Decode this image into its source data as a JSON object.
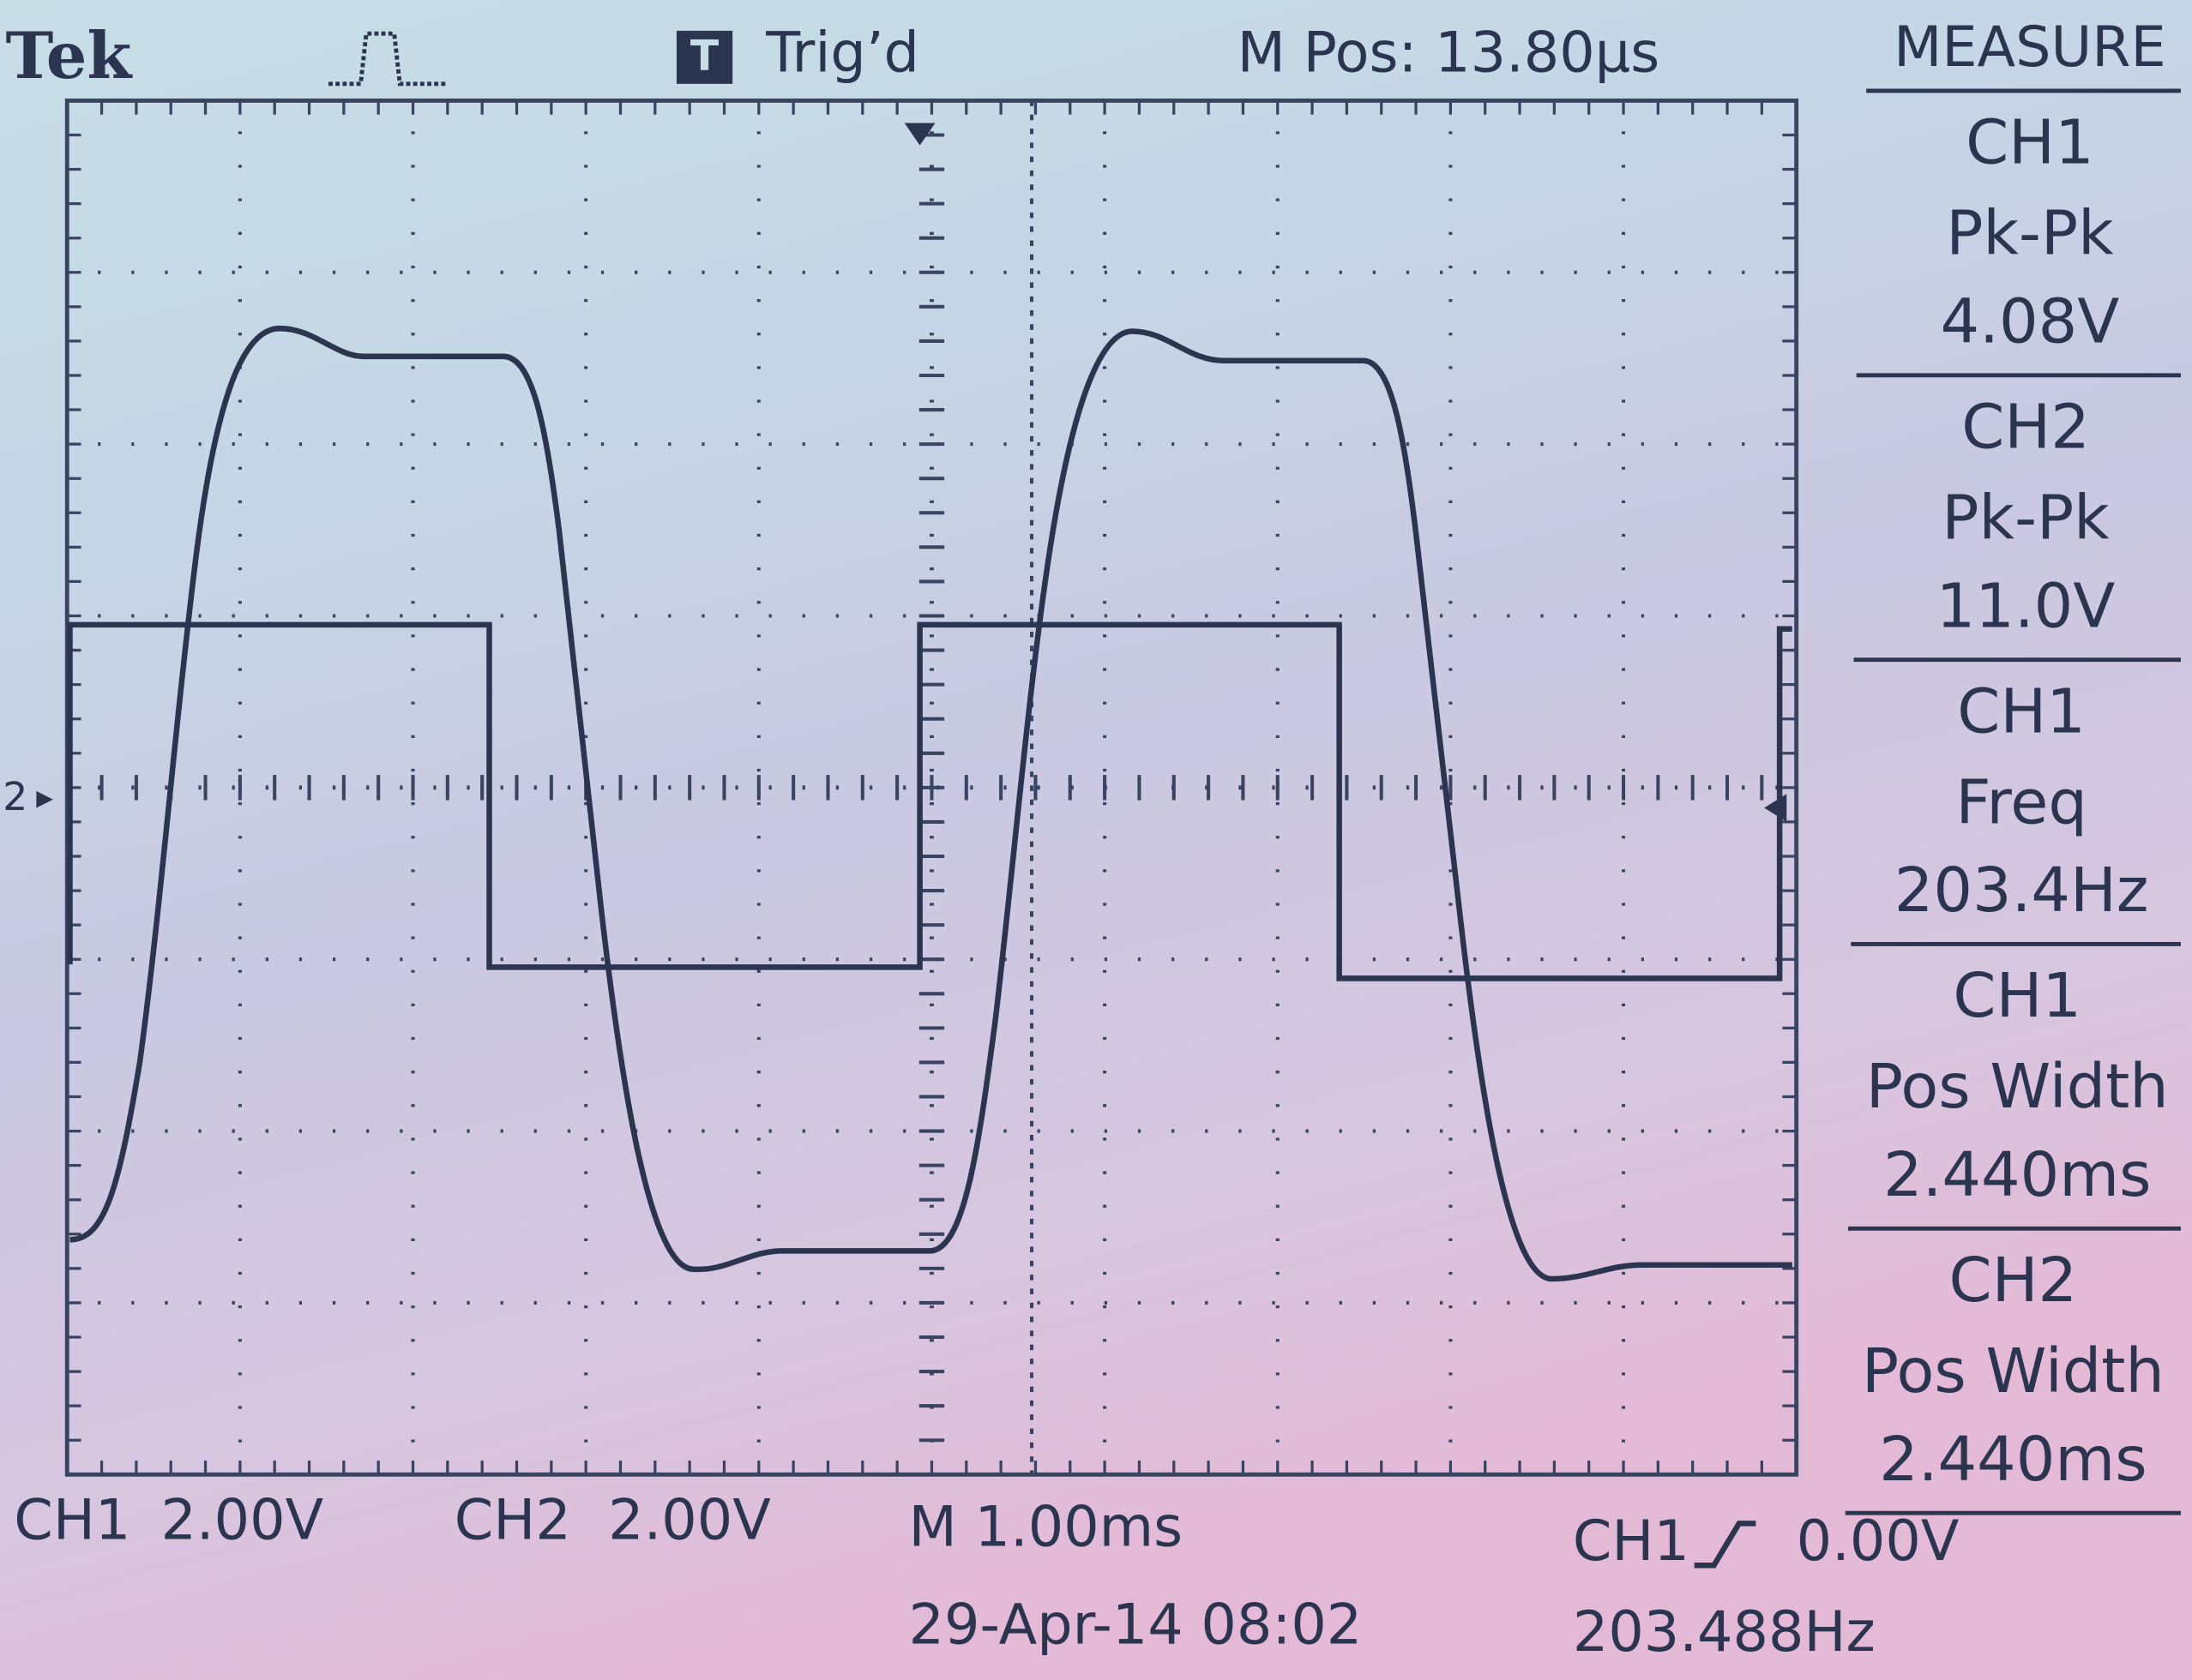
{
  "header": {
    "brand": "Tek",
    "trigger_icon": "T",
    "trigger_status": "Trig’d",
    "position": "M Pos: 13.80µs"
  },
  "measure": {
    "title": "MEASURE",
    "items": [
      {
        "channel": "CH1",
        "label": "Pk-Pk",
        "value": "4.08V"
      },
      {
        "channel": "CH2",
        "label": "Pk-Pk",
        "value": "11.0V"
      },
      {
        "channel": "CH1",
        "label": "Freq",
        "value": "203.4Hz"
      },
      {
        "channel": "CH1",
        "label": "Pos Width",
        "value": "2.440ms"
      },
      {
        "channel": "CH2",
        "label": "Pos Width",
        "value": "2.440ms"
      }
    ]
  },
  "screen": {
    "ground_marker": "2"
  },
  "footer": {
    "ch1_name": "CH1",
    "ch1_scale": "2.00V",
    "ch2_name": "CH2",
    "ch2_scale": "2.00V",
    "timebase": "M 1.00ms",
    "trigger_source": "CH1",
    "trigger_level": "0.00V",
    "date": "29-Apr-14 08:02",
    "counter": "203.488Hz"
  }
}
